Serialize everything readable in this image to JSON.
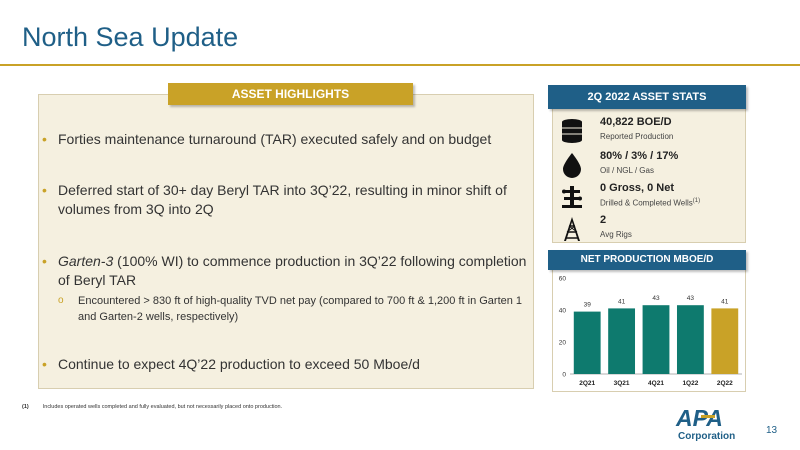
{
  "page": {
    "title": "North Sea Update",
    "page_number": "13"
  },
  "highlights": {
    "header": "ASSET HIGHLIGHTS",
    "bullets": [
      "Forties maintenance turnaround (TAR) executed safely and on budget",
      "Deferred start of 30+ day Beryl TAR into 3Q’22, resulting in minor shift of volumes from 3Q into 2Q",
      {
        "em": "Garten-3",
        "rest": " (100% WI) to commence production in 3Q’22 following completion of Beryl TAR"
      },
      "Continue to expect 4Q’22 production to exceed 50 Mboe/d"
    ],
    "sub_bullet": "Encountered > 830 ft of high-quality TVD net pay (compared to 700 ft & 1,200 ft in Garten 1 and Garten-2 wells, respectively)",
    "bullet_glyph": "•",
    "sub_glyph": "o"
  },
  "stats": {
    "header": "2Q 2022 ASSET STATS",
    "items": [
      {
        "value": "40,822 BOE/D",
        "label": "Reported Production",
        "icon": "oil-barrel-icon"
      },
      {
        "value": "80% / 3% / 17%",
        "label": "Oil  / NGL  /  Gas",
        "icon": "oil-drop-icon"
      },
      {
        "value": "0 Gross, 0 Net",
        "label": "Drilled & Completed Wells",
        "label_sup": "(1)",
        "icon": "wellhead-icon"
      },
      {
        "value": "2",
        "label": "Avg Rigs",
        "icon": "drilling-rig-icon"
      }
    ]
  },
  "production": {
    "header": "NET PRODUCTION MBOE/D"
  },
  "chart_data": {
    "type": "bar",
    "title": "NET PRODUCTION MBOE/D",
    "categories": [
      "2Q21",
      "3Q21",
      "4Q21",
      "1Q22",
      "2Q22"
    ],
    "values": [
      39,
      41,
      43,
      43,
      41
    ],
    "ylim": [
      0,
      60
    ],
    "yticks": [
      0,
      20,
      40,
      60
    ],
    "colors": [
      "#0e7a6e",
      "#0e7a6e",
      "#0e7a6e",
      "#0e7a6e",
      "#c9a227"
    ],
    "grid": false
  },
  "footnote": {
    "num": "(1)",
    "text": "Includes operated wells completed and fully evaluated, but not necessarily placed onto production."
  },
  "logo": {
    "name": "APA",
    "sub": "Corporation"
  }
}
